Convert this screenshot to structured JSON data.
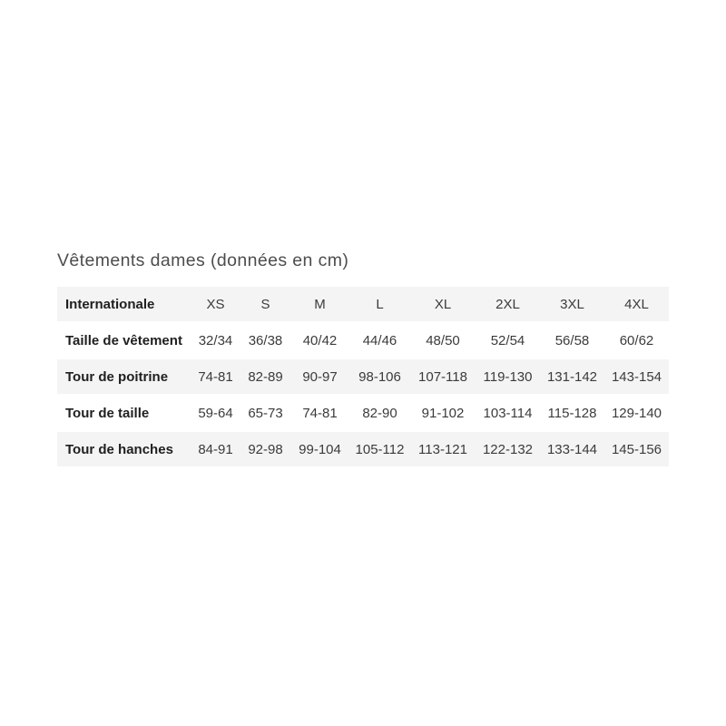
{
  "colors": {
    "page_background": "#ffffff",
    "row_stripe_background": "#f4f4f4",
    "label_text": "#1f1f1f",
    "value_text": "#3b3b3b",
    "title_text": "#4d4d4d"
  },
  "chart_data": {
    "type": "table",
    "title": "Vêtements dames (données en cm)",
    "unit": "cm",
    "header": {
      "label": "Internationale",
      "sizes": [
        "XS",
        "S",
        "M",
        "L",
        "XL",
        "2XL",
        "3XL",
        "4XL"
      ]
    },
    "rows": [
      {
        "label": "Taille de vêtement",
        "values": [
          "32/34",
          "36/38",
          "40/42",
          "44/46",
          "48/50",
          "52/54",
          "56/58",
          "60/62"
        ]
      },
      {
        "label": "Tour de poitrine",
        "values": [
          "74-81",
          "82-89",
          "90-97",
          "98-106",
          "107-118",
          "119-130",
          "131-142",
          "143-154"
        ]
      },
      {
        "label": "Tour de taille",
        "values": [
          "59-64",
          "65-73",
          "74-81",
          "82-90",
          "91-102",
          "103-114",
          "115-128",
          "129-140"
        ]
      },
      {
        "label": "Tour de hanches",
        "values": [
          "84-91",
          "92-98",
          "99-104",
          "105-112",
          "113-121",
          "122-132",
          "133-144",
          "145-156"
        ]
      }
    ]
  }
}
